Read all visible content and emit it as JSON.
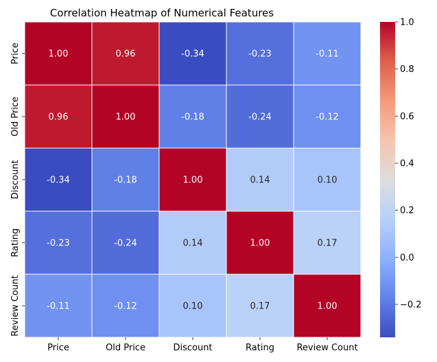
{
  "chart_data": {
    "type": "heatmap",
    "title": "Correlation Heatmap of Numerical Features",
    "x_labels": [
      "Price",
      "Old Price",
      "Discount",
      "Rating",
      "Review Count"
    ],
    "y_labels": [
      "Price",
      "Old Price",
      "Discount",
      "Rating",
      "Review Count"
    ],
    "values": [
      [
        1.0,
        0.96,
        -0.34,
        -0.23,
        -0.11
      ],
      [
        0.96,
        1.0,
        -0.18,
        -0.24,
        -0.12
      ],
      [
        -0.34,
        -0.18,
        1.0,
        0.14,
        0.1
      ],
      [
        -0.23,
        -0.24,
        0.14,
        1.0,
        0.17
      ],
      [
        -0.11,
        -0.12,
        0.1,
        0.17,
        1.0
      ]
    ],
    "annotation_format": "2 decimals",
    "colormap": "coolwarm",
    "color_range": [
      -0.34,
      1.0
    ],
    "colorbar_ticks": [
      "1.0",
      "0.8",
      "0.6",
      "0.4",
      "0.2",
      "0.0",
      "−0.2"
    ],
    "colorbar_tick_values": [
      1.0,
      0.8,
      0.6,
      0.4,
      0.2,
      0.0,
      -0.2
    ],
    "cell_border_color": "#ffffff",
    "light_text_color": "#ffffff",
    "dark_text_color": "#262626"
  }
}
